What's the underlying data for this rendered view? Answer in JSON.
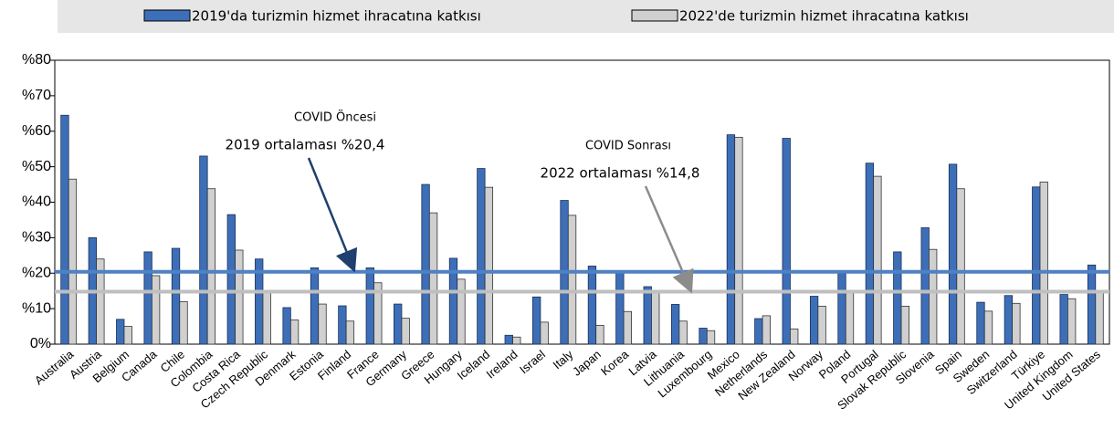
{
  "chart_data": {
    "type": "bar",
    "categories": [
      "Australia",
      "Austria",
      "Belgium",
      "Canada",
      "Chile",
      "Colombia",
      "Costa Rica",
      "Czech Republic",
      "Denmark",
      "Estonia",
      "Finland",
      "France",
      "Germany",
      "Greece",
      "Hungary",
      "Iceland",
      "Ireland",
      "Israel",
      "Italy",
      "Japan",
      "Korea",
      "Latvia",
      "Lithuania",
      "Luxembourg",
      "Mexico",
      "Netherlands",
      "New Zealand",
      "Norway",
      "Poland",
      "Portugal",
      "Slovak Republic",
      "Slovenia",
      "Spain",
      "Sweden",
      "Switzerland",
      "Türkiye",
      "United Kingdom",
      "United States"
    ],
    "series": [
      {
        "name": "2019'da turizmin hizmet ihracatına katkısı",
        "color": "#3d6fb8",
        "values": [
          64.5,
          30,
          7,
          26,
          27,
          53,
          36.5,
          24,
          10.3,
          21.5,
          10.8,
          21.5,
          11.3,
          45,
          24.2,
          49.5,
          2.5,
          13.3,
          40.5,
          22,
          20.5,
          16.2,
          11.2,
          4.5,
          59,
          7.2,
          58,
          13.5,
          20,
          51,
          26,
          32.8,
          50.7,
          11.8,
          13.7,
          44.3,
          14,
          22.3
        ]
      },
      {
        "name": "2022'de turizmin hizmet ihracatına katkısı",
        "color": "#d0d0d0",
        "values": [
          46.5,
          24,
          5,
          19.3,
          12,
          43.8,
          26.5,
          15,
          6.8,
          11.3,
          6.5,
          17.3,
          7.3,
          37,
          18.3,
          44.2,
          2,
          6.2,
          36.3,
          5.3,
          9.2,
          14.5,
          6.5,
          3.8,
          58.3,
          8,
          4.3,
          10.7,
          15,
          47.3,
          10.7,
          26.7,
          43.8,
          9.3,
          11.5,
          45.7,
          12.8,
          14.7
        ]
      }
    ],
    "reference_lines": [
      {
        "value": 20.4,
        "color": "#4f81c4"
      },
      {
        "value": 14.8,
        "color": "#bfbfbf"
      }
    ],
    "annotations": [
      "COVID Öncesi",
      "2019 ortalaması %20,4",
      "COVID Sonrası",
      "2022 ortalaması %14,8"
    ],
    "ylim": [
      0,
      80
    ],
    "yticks": [
      {
        "value": 0,
        "label": "0%"
      },
      {
        "value": 10,
        "label": "%10"
      },
      {
        "value": 20,
        "label": "%20"
      },
      {
        "value": 30,
        "label": "%30"
      },
      {
        "value": 40,
        "label": "%40"
      },
      {
        "value": 50,
        "label": "%50"
      },
      {
        "value": 60,
        "label": "%60"
      },
      {
        "value": 70,
        "label": "%70"
      },
      {
        "value": 80,
        "label": "%80"
      }
    ]
  }
}
